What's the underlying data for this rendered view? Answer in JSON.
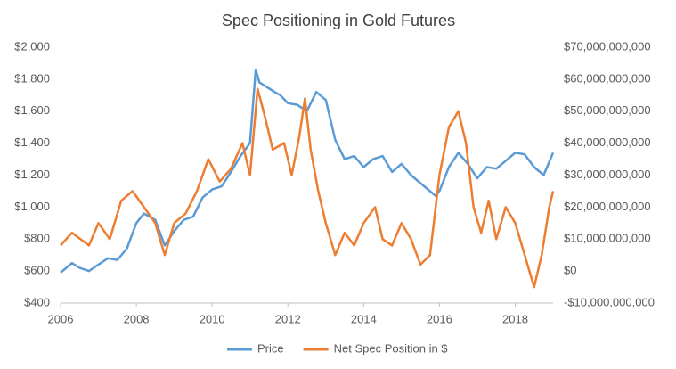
{
  "chart_data": {
    "type": "line",
    "title": "Spec Positioning in Gold Futures",
    "xlim": [
      2006,
      2019
    ],
    "xticks": [
      2006,
      2008,
      2010,
      2012,
      2014,
      2016,
      2018
    ],
    "ylim": [
      400,
      2000
    ],
    "yticks": [
      {
        "value": 400,
        "label": "$400"
      },
      {
        "value": 600,
        "label": "$600"
      },
      {
        "value": 800,
        "label": "$800"
      },
      {
        "value": 1000,
        "label": "$1,000"
      },
      {
        "value": 1200,
        "label": "$1,200"
      },
      {
        "value": 1400,
        "label": "$1,400"
      },
      {
        "value": 1600,
        "label": "$1,600"
      },
      {
        "value": 1800,
        "label": "$1,800"
      },
      {
        "value": 2000,
        "label": "$2,000"
      }
    ],
    "y2lim": [
      -10000000000,
      70000000000
    ],
    "y2ticks": [
      {
        "value": -10000000000,
        "label": "-$10,000,000,000"
      },
      {
        "value": 0,
        "label": "$0"
      },
      {
        "value": 10000000000,
        "label": "$10,000,000,000"
      },
      {
        "value": 20000000000,
        "label": "$20,000,000,000"
      },
      {
        "value": 30000000000,
        "label": "$30,000,000,000"
      },
      {
        "value": 40000000000,
        "label": "$40,000,000,000"
      },
      {
        "value": 50000000000,
        "label": "$50,000,000,000"
      },
      {
        "value": 60000000000,
        "label": "$60,000,000,000"
      },
      {
        "value": 70000000000,
        "label": "$70,000,000,000"
      }
    ],
    "grid": false,
    "legend": "bottom",
    "series": [
      {
        "name": "Price",
        "color": "#5b9bd5",
        "x": [
          2006.0,
          2006.3,
          2006.5,
          2006.75,
          2007.0,
          2007.25,
          2007.5,
          2007.75,
          2008.0,
          2008.2,
          2008.5,
          2008.75,
          2009.0,
          2009.25,
          2009.5,
          2009.75,
          2010.0,
          2010.25,
          2010.5,
          2010.75,
          2011.0,
          2011.15,
          2011.25,
          2011.45,
          2011.65,
          2011.8,
          2012.0,
          2012.25,
          2012.5,
          2012.75,
          2013.0,
          2013.25,
          2013.5,
          2013.75,
          2014.0,
          2014.25,
          2014.5,
          2014.75,
          2015.0,
          2015.25,
          2015.5,
          2015.9,
          2016.0,
          2016.25,
          2016.5,
          2016.75,
          2017.0,
          2017.25,
          2017.5,
          2017.75,
          2018.0,
          2018.25,
          2018.5,
          2018.75,
          2019.0
        ],
        "values": [
          590,
          650,
          620,
          600,
          640,
          680,
          670,
          740,
          900,
          960,
          920,
          760,
          850,
          920,
          940,
          1060,
          1110,
          1130,
          1220,
          1320,
          1400,
          1860,
          1780,
          1750,
          1720,
          1700,
          1650,
          1640,
          1600,
          1720,
          1670,
          1420,
          1300,
          1320,
          1250,
          1300,
          1320,
          1220,
          1270,
          1200,
          1150,
          1070,
          1100,
          1250,
          1340,
          1270,
          1180,
          1250,
          1240,
          1290,
          1340,
          1330,
          1250,
          1200,
          1340
        ]
      },
      {
        "name": "Net Spec Position in $",
        "color": "#ed7d31",
        "axis": "y2",
        "x": [
          2006.0,
          2006.3,
          2006.75,
          2007.0,
          2007.3,
          2007.6,
          2007.9,
          2008.2,
          2008.5,
          2008.75,
          2009.0,
          2009.3,
          2009.6,
          2009.9,
          2010.2,
          2010.5,
          2010.8,
          2011.0,
          2011.2,
          2011.4,
          2011.6,
          2011.9,
          2012.1,
          2012.3,
          2012.45,
          2012.6,
          2012.8,
          2013.0,
          2013.25,
          2013.5,
          2013.75,
          2014.0,
          2014.3,
          2014.5,
          2014.75,
          2015.0,
          2015.25,
          2015.5,
          2015.75,
          2016.0,
          2016.25,
          2016.5,
          2016.7,
          2016.9,
          2017.1,
          2017.3,
          2017.5,
          2017.75,
          2018.0,
          2018.25,
          2018.5,
          2018.7,
          2018.9,
          2019.0
        ],
        "values": [
          8000000000,
          12000000000,
          8000000000,
          15000000000,
          10000000000,
          22000000000,
          25000000000,
          20000000000,
          15000000000,
          5000000000,
          15000000000,
          18000000000,
          25000000000,
          35000000000,
          28000000000,
          32000000000,
          40000000000,
          30000000000,
          57000000000,
          48000000000,
          38000000000,
          40000000000,
          30000000000,
          42000000000,
          54000000000,
          38000000000,
          25000000000,
          15000000000,
          5000000000,
          12000000000,
          8000000000,
          15000000000,
          20000000000,
          10000000000,
          8000000000,
          15000000000,
          10000000000,
          2000000000,
          5000000000,
          30000000000,
          45000000000,
          50000000000,
          40000000000,
          20000000000,
          12000000000,
          22000000000,
          10000000000,
          20000000000,
          15000000000,
          5000000000,
          -5000000000,
          5000000000,
          20000000000,
          25000000000
        ]
      }
    ]
  }
}
